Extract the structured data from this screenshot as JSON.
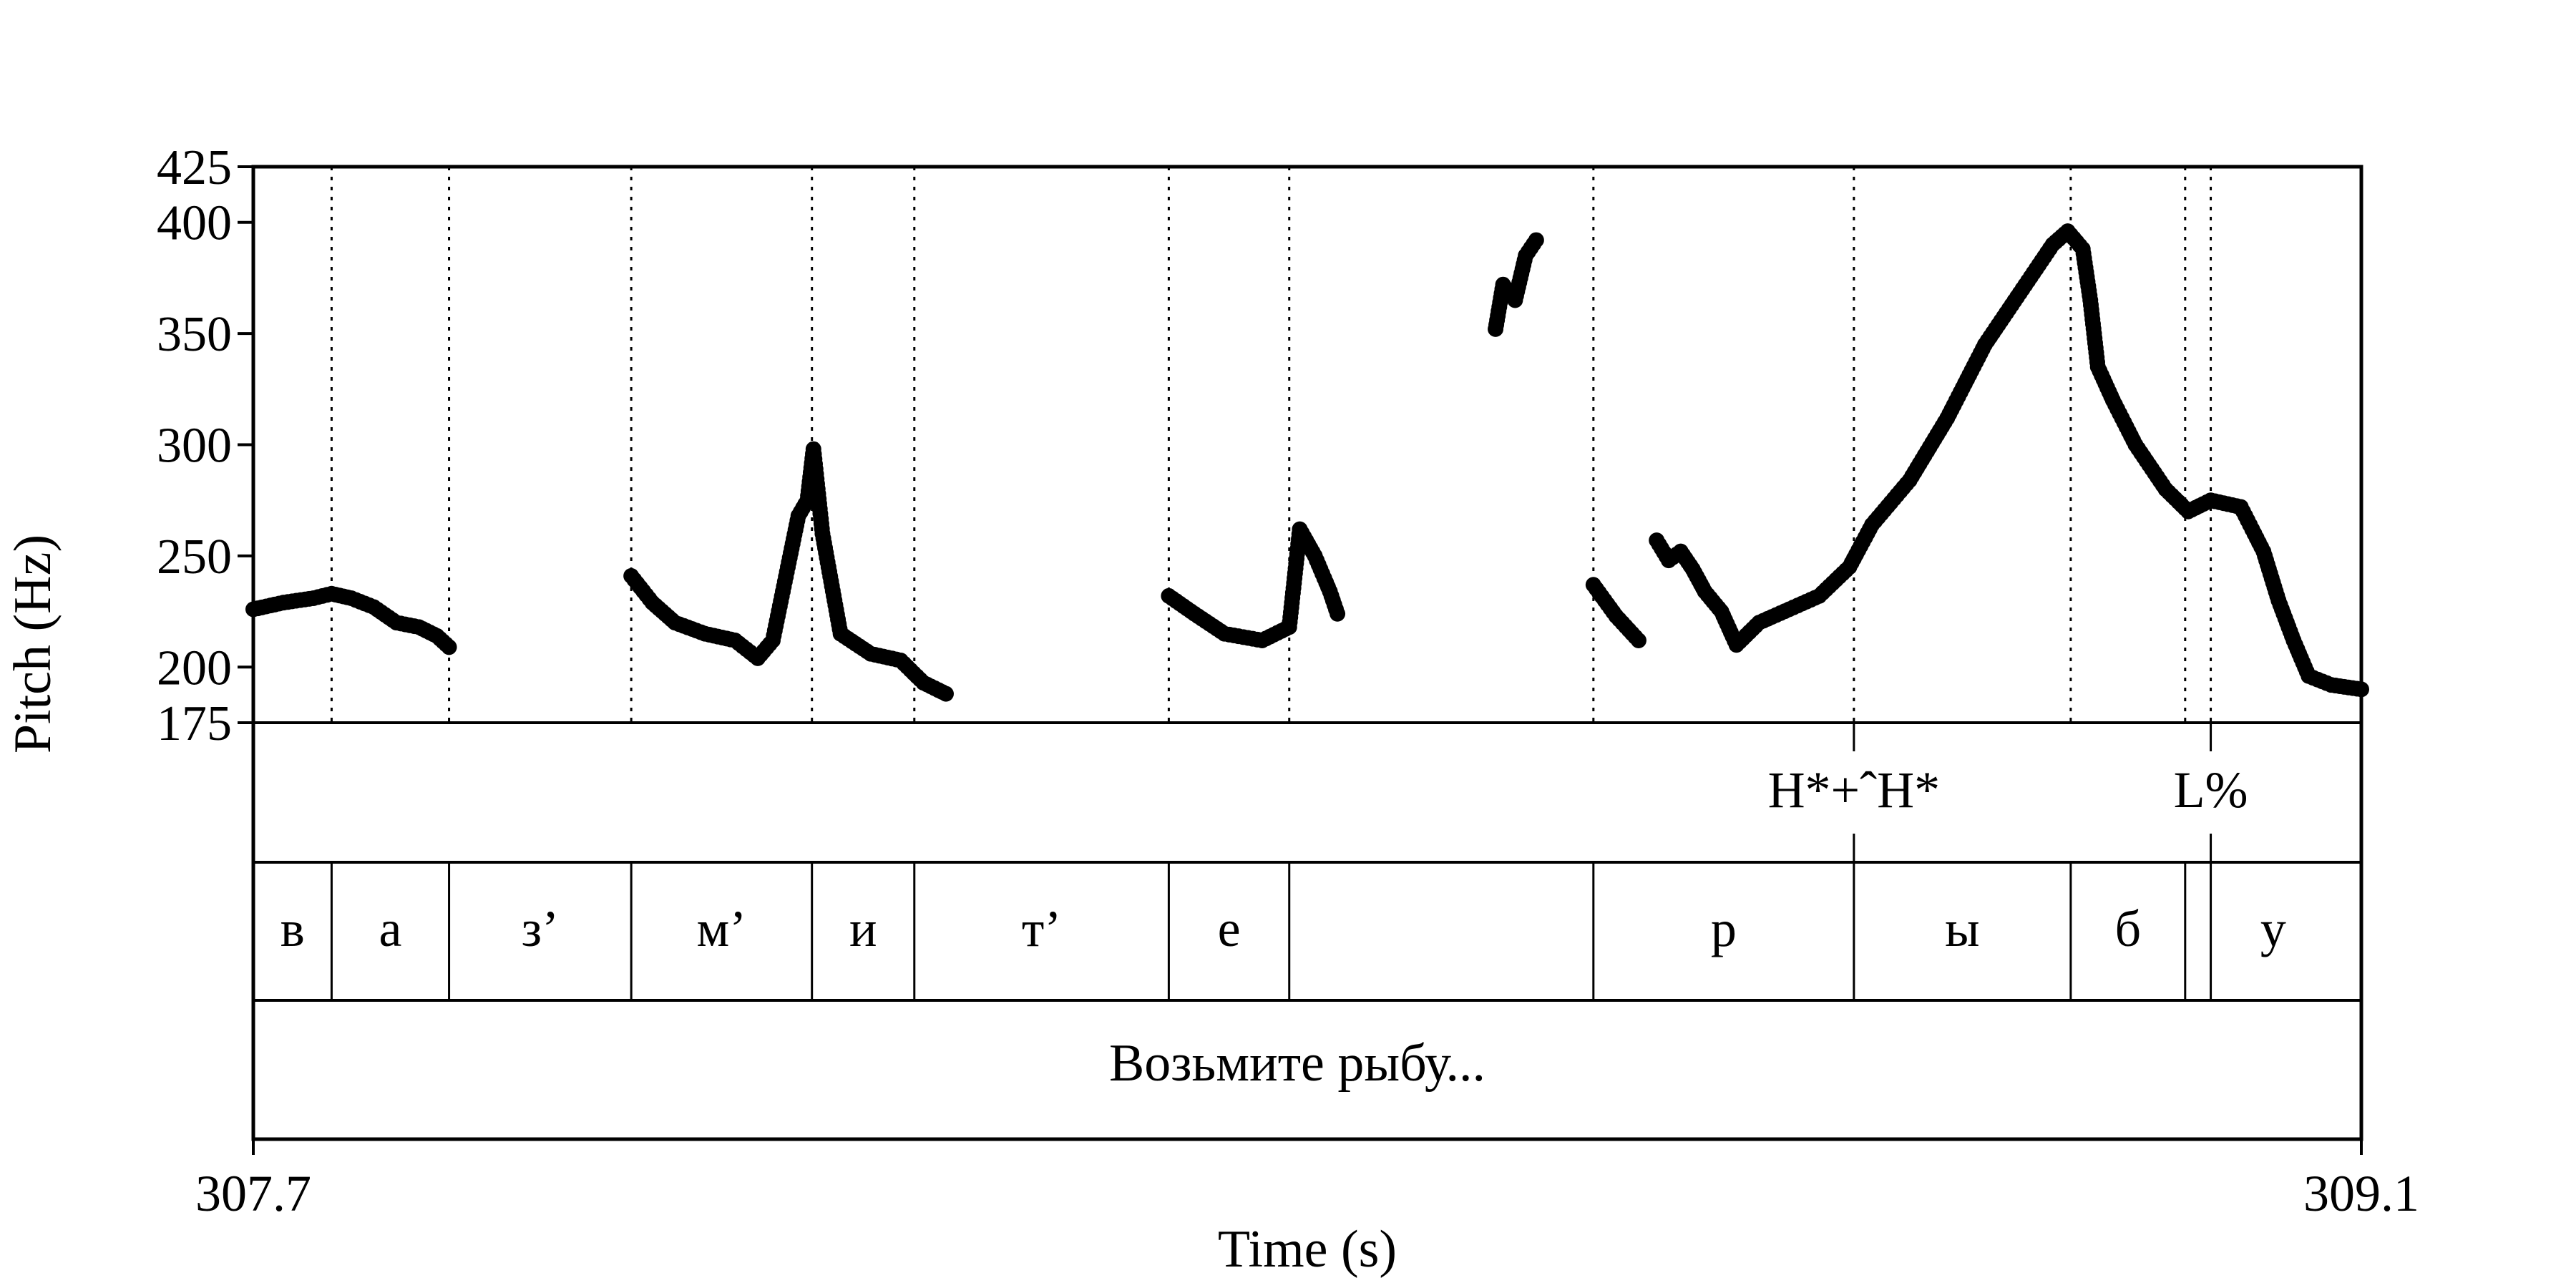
{
  "chart_data": {
    "type": "scatter",
    "title": "",
    "xlabel": "Time (s)",
    "ylabel": "Pitch (Hz)",
    "xlim": [
      307.7,
      309.1
    ],
    "ylim": [
      175,
      425
    ],
    "x_tick_labels": [
      "307.7",
      "309.1"
    ],
    "y_ticks": [
      175,
      200,
      250,
      300,
      350,
      400,
      425
    ],
    "grid": false,
    "point_color": "#000000",
    "boundaries": [
      307.752,
      307.83,
      307.951,
      308.071,
      308.139,
      308.308,
      308.388,
      308.59,
      308.763,
      308.907,
      308.983,
      309.0
    ],
    "tones": [
      {
        "label": "H*+ˆH*",
        "time": 308.763
      },
      {
        "label": "L%",
        "time": 309.0
      }
    ],
    "segments": [
      {
        "label": "в",
        "start": 307.7,
        "end": 307.752
      },
      {
        "label": "а",
        "start": 307.752,
        "end": 307.83
      },
      {
        "label": "з’",
        "start": 307.83,
        "end": 307.951
      },
      {
        "label": "м’",
        "start": 307.951,
        "end": 308.071
      },
      {
        "label": "и",
        "start": 308.071,
        "end": 308.139
      },
      {
        "label": "т’",
        "start": 308.139,
        "end": 308.308
      },
      {
        "label": "е",
        "start": 308.308,
        "end": 308.388
      },
      {
        "label": "",
        "start": 308.388,
        "end": 308.59
      },
      {
        "label": "р",
        "start": 308.59,
        "end": 308.763
      },
      {
        "label": "ы",
        "start": 308.763,
        "end": 308.907
      },
      {
        "label": "б",
        "start": 308.907,
        "end": 308.983
      },
      {
        "label": "у",
        "start": 308.983,
        "end": 309.1
      }
    ],
    "phrase": "Возьмите рыбу...",
    "contours": [
      [
        [
          307.7,
          226
        ],
        [
          307.72,
          229
        ],
        [
          307.74,
          231
        ],
        [
          307.752,
          233
        ],
        [
          307.765,
          231
        ],
        [
          307.78,
          227
        ],
        [
          307.795,
          220
        ],
        [
          307.81,
          218
        ],
        [
          307.822,
          214
        ],
        [
          307.83,
          209
        ]
      ],
      [
        [
          307.951,
          241
        ],
        [
          307.965,
          229
        ],
        [
          307.98,
          220
        ],
        [
          308.0,
          215
        ],
        [
          308.02,
          212
        ],
        [
          308.035,
          204
        ],
        [
          308.045,
          212
        ],
        [
          308.055,
          245
        ],
        [
          308.062,
          268
        ],
        [
          308.068,
          275
        ],
        [
          308.072,
          298
        ],
        [
          308.078,
          260
        ],
        [
          308.09,
          215
        ],
        [
          308.11,
          206
        ],
        [
          308.13,
          203
        ],
        [
          308.145,
          193
        ],
        [
          308.16,
          188
        ]
      ],
      [
        [
          308.308,
          232
        ],
        [
          308.325,
          224
        ],
        [
          308.345,
          215
        ],
        [
          308.37,
          212
        ],
        [
          308.388,
          218
        ],
        [
          308.395,
          262
        ],
        [
          308.405,
          250
        ],
        [
          308.415,
          234
        ],
        [
          308.42,
          224
        ]
      ],
      [
        [
          308.525,
          352
        ],
        [
          308.53,
          372
        ],
        [
          308.538,
          365
        ],
        [
          308.545,
          385
        ],
        [
          308.552,
          392
        ]
      ],
      [
        [
          308.59,
          237
        ],
        [
          308.605,
          223
        ],
        [
          308.62,
          212
        ]
      ],
      [
        [
          308.632,
          257
        ],
        [
          308.64,
          248
        ],
        [
          308.648,
          252
        ],
        [
          308.656,
          244
        ],
        [
          308.664,
          234
        ],
        [
          308.675,
          225
        ],
        [
          308.685,
          210
        ],
        [
          308.7,
          220
        ],
        [
          308.72,
          226
        ],
        [
          308.74,
          232
        ],
        [
          308.76,
          245
        ],
        [
          308.775,
          264
        ],
        [
          308.8,
          284
        ],
        [
          308.825,
          312
        ],
        [
          308.85,
          345
        ],
        [
          308.875,
          370
        ],
        [
          308.895,
          390
        ],
        [
          308.905,
          396
        ],
        [
          308.915,
          388
        ],
        [
          308.92,
          365
        ],
        [
          308.925,
          335
        ],
        [
          308.935,
          320
        ],
        [
          308.95,
          300
        ],
        [
          308.97,
          280
        ],
        [
          308.985,
          270
        ],
        [
          309.0,
          275
        ],
        [
          309.02,
          272
        ],
        [
          309.035,
          252
        ],
        [
          309.045,
          230
        ],
        [
          309.055,
          212
        ],
        [
          309.065,
          196
        ],
        [
          309.08,
          192
        ],
        [
          309.1,
          190
        ]
      ]
    ]
  }
}
